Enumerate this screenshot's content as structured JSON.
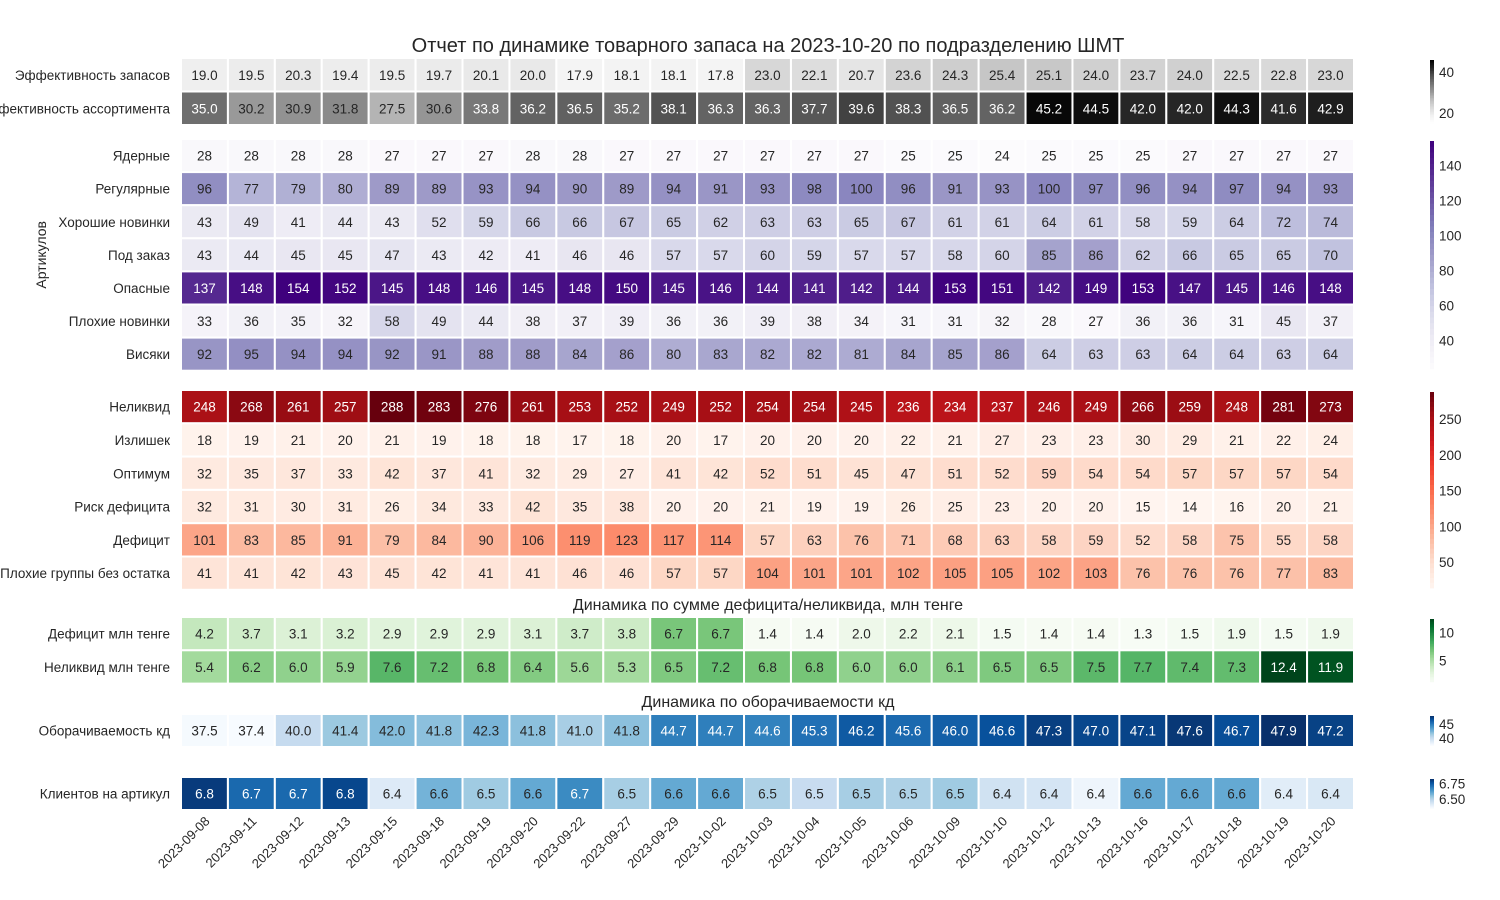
{
  "title": "Отчет по динамике товарного запаса на 2023-10-20 по подразделению ШМТ",
  "chart_data": {
    "type": "heatmap",
    "x": [
      "2023-09-08",
      "2023-09-11",
      "2023-09-12",
      "2023-09-13",
      "2023-09-15",
      "2023-09-18",
      "2023-09-19",
      "2023-09-20",
      "2023-09-22",
      "2023-09-27",
      "2023-09-29",
      "2023-10-02",
      "2023-10-03",
      "2023-10-04",
      "2023-10-05",
      "2023-10-06",
      "2023-10-09",
      "2023-10-10",
      "2023-10-12",
      "2023-10-13",
      "2023-10-16",
      "2023-10-17",
      "2023-10-18",
      "2023-10-19",
      "2023-10-20"
    ],
    "panels": [
      {
        "id": "efficiency",
        "colormap": "greys",
        "decimals": 1,
        "vmin": 15,
        "vmax": 46,
        "colorbar_ticks": [
          "20",
          "40"
        ],
        "colorbar_tick_values": [
          20,
          40
        ],
        "rows": [
          {
            "label": "Эффективность запасов",
            "values": [
              19.0,
              19.5,
              20.3,
              19.4,
              19.5,
              19.7,
              20.1,
              20.0,
              17.9,
              18.1,
              18.1,
              17.8,
              23.0,
              22.1,
              20.7,
              23.6,
              24.3,
              25.4,
              25.1,
              24.0,
              23.7,
              24.0,
              22.5,
              22.8,
              23.0
            ]
          },
          {
            "label": "Эффективность ассортимента",
            "values": [
              35.0,
              30.2,
              30.9,
              31.8,
              27.5,
              30.6,
              33.8,
              36.2,
              36.5,
              35.2,
              38.1,
              36.3,
              36.3,
              37.7,
              39.6,
              38.3,
              36.5,
              36.2,
              45.2,
              44.5,
              42.0,
              42.0,
              44.3,
              41.6,
              42.9
            ]
          }
        ]
      },
      {
        "id": "articles",
        "colormap": "purples",
        "decimals": 0,
        "ylabel": "Артикулов",
        "vmin": 24,
        "vmax": 154,
        "colorbar_ticks": [
          "40",
          "60",
          "80",
          "100",
          "120",
          "140"
        ],
        "colorbar_tick_values": [
          40,
          60,
          80,
          100,
          120,
          140
        ],
        "rows": [
          {
            "label": "Ядерные",
            "values": [
              28,
              28,
              28,
              28,
              27,
              27,
              27,
              28,
              28,
              27,
              27,
              27,
              27,
              27,
              27,
              25,
              25,
              24,
              25,
              25,
              25,
              27,
              27,
              27,
              27
            ]
          },
          {
            "label": "Регулярные",
            "values": [
              96,
              77,
              79,
              80,
              89,
              89,
              93,
              94,
              90,
              89,
              94,
              91,
              93,
              98,
              100,
              96,
              91,
              93,
              100,
              97,
              96,
              94,
              97,
              94,
              93
            ]
          },
          {
            "label": "Хорошие новинки",
            "values": [
              43,
              49,
              41,
              44,
              43,
              52,
              59,
              66,
              66,
              67,
              65,
              62,
              63,
              63,
              65,
              67,
              61,
              61,
              64,
              61,
              58,
              59,
              64,
              72,
              74
            ]
          },
          {
            "label": "Под заказ",
            "values": [
              43,
              44,
              45,
              45,
              47,
              43,
              42,
              41,
              46,
              46,
              57,
              57,
              60,
              59,
              57,
              57,
              58,
              60,
              85,
              86,
              62,
              66,
              65,
              65,
              70
            ]
          },
          {
            "label": "Опасные",
            "values": [
              137,
              148,
              154,
              152,
              145,
              148,
              146,
              145,
              148,
              150,
              145,
              146,
              144,
              141,
              142,
              144,
              153,
              151,
              142,
              149,
              153,
              147,
              145,
              146,
              148
            ]
          },
          {
            "label": "Плохие новинки",
            "values": [
              33,
              36,
              35,
              32,
              58,
              49,
              44,
              38,
              37,
              39,
              36,
              36,
              39,
              38,
              34,
              31,
              31,
              32,
              28,
              27,
              36,
              36,
              31,
              45,
              37
            ]
          },
          {
            "label": "Висяки",
            "values": [
              92,
              95,
              94,
              94,
              92,
              91,
              88,
              88,
              84,
              86,
              80,
              83,
              82,
              82,
              81,
              84,
              85,
              86,
              64,
              63,
              63,
              64,
              64,
              63,
              64
            ]
          }
        ]
      },
      {
        "id": "groups",
        "colormap": "reds",
        "decimals": 0,
        "vmin": 14,
        "vmax": 288,
        "colorbar_ticks": [
          "50",
          "100",
          "150",
          "200",
          "250"
        ],
        "colorbar_tick_values": [
          50,
          100,
          150,
          200,
          250
        ],
        "rows": [
          {
            "label": "Неликвид",
            "values": [
              248,
              268,
              261,
              257,
              288,
              283,
              276,
              261,
              253,
              252,
              249,
              252,
              254,
              254,
              245,
              236,
              234,
              237,
              246,
              249,
              266,
              259,
              248,
              281,
              273
            ]
          },
          {
            "label": "Излишек",
            "values": [
              18,
              19,
              21,
              20,
              21,
              19,
              18,
              18,
              17,
              18,
              20,
              17,
              20,
              20,
              20,
              22,
              21,
              27,
              23,
              23,
              30,
              29,
              21,
              22,
              24
            ]
          },
          {
            "label": "Оптимум",
            "values": [
              32,
              35,
              37,
              33,
              42,
              37,
              41,
              32,
              29,
              27,
              41,
              42,
              52,
              51,
              45,
              47,
              51,
              52,
              59,
              54,
              54,
              57,
              57,
              57,
              54
            ]
          },
          {
            "label": "Риск дефицита",
            "values": [
              32,
              31,
              30,
              31,
              26,
              34,
              33,
              42,
              35,
              38,
              20,
              20,
              21,
              19,
              19,
              26,
              25,
              23,
              20,
              20,
              15,
              14,
              16,
              20,
              21
            ]
          },
          {
            "label": "Дефицит",
            "values": [
              101,
              83,
              85,
              91,
              79,
              84,
              90,
              106,
              119,
              123,
              117,
              114,
              57,
              63,
              76,
              71,
              68,
              63,
              58,
              59,
              52,
              58,
              75,
              55,
              58
            ]
          },
          {
            "label": "Плохие группы без остатка",
            "values": [
              41,
              41,
              42,
              43,
              45,
              42,
              41,
              41,
              46,
              46,
              57,
              57,
              104,
              101,
              101,
              102,
              105,
              105,
              102,
              103,
              76,
              76,
              76,
              77,
              83
            ]
          }
        ]
      },
      {
        "id": "money",
        "title": "Динамика по сумме дефицита/неликвида, млн тенге",
        "colormap": "greens",
        "decimals": 1,
        "vmin": 1.3,
        "vmax": 12.4,
        "colorbar_ticks": [
          "5",
          "10"
        ],
        "colorbar_tick_values": [
          5,
          10
        ],
        "rows": [
          {
            "label": "Дефицит млн тенге",
            "values": [
              4.2,
              3.7,
              3.1,
              3.2,
              2.9,
              2.9,
              2.9,
              3.1,
              3.7,
              3.8,
              6.7,
              6.7,
              1.4,
              1.4,
              2.0,
              2.2,
              2.1,
              1.5,
              1.4,
              1.4,
              1.3,
              1.5,
              1.9,
              1.5,
              1.9
            ]
          },
          {
            "label": "Неликвид млн тенге",
            "values": [
              5.4,
              6.2,
              6.0,
              5.9,
              7.6,
              7.2,
              6.8,
              6.4,
              5.6,
              5.3,
              6.5,
              7.2,
              6.8,
              6.8,
              6.0,
              6.0,
              6.1,
              6.5,
              6.5,
              7.5,
              7.7,
              7.4,
              7.3,
              12.4,
              11.9
            ]
          }
        ]
      },
      {
        "id": "turnover",
        "title": "Динамика по оборачиваемости кд",
        "colormap": "blues",
        "decimals": 1,
        "vmin": 37.4,
        "vmax": 47.9,
        "colorbar_ticks": [
          "40",
          "45"
        ],
        "colorbar_tick_values": [
          40,
          45
        ],
        "rows": [
          {
            "label": "Оборачиваемость кд",
            "values": [
              37.5,
              37.4,
              40.0,
              41.4,
              42.0,
              41.8,
              42.3,
              41.8,
              41.0,
              41.8,
              44.7,
              44.7,
              44.6,
              45.3,
              46.2,
              45.6,
              46.0,
              46.6,
              47.3,
              47.0,
              47.1,
              47.6,
              46.7,
              47.9,
              47.2
            ]
          }
        ]
      },
      {
        "id": "clients",
        "colormap": "blues",
        "decimals": 1,
        "vmin": 6.36,
        "vmax": 6.82,
        "color_values": [
          6.8,
          6.72,
          6.72,
          6.78,
          6.42,
          6.58,
          6.53,
          6.6,
          6.66,
          6.52,
          6.6,
          6.6,
          6.51,
          6.47,
          6.52,
          6.51,
          6.53,
          6.45,
          6.44,
          6.38,
          6.6,
          6.6,
          6.6,
          6.41,
          6.43
        ],
        "colorbar_ticks": [
          "6.50",
          "6.75"
        ],
        "colorbar_tick_values": [
          6.5,
          6.75
        ],
        "rows": [
          {
            "label": "Клиентов на артикул",
            "values": [
              6.8,
              6.7,
              6.7,
              6.8,
              6.4,
              6.6,
              6.5,
              6.6,
              6.7,
              6.5,
              6.6,
              6.6,
              6.5,
              6.5,
              6.5,
              6.5,
              6.5,
              6.4,
              6.4,
              6.4,
              6.6,
              6.6,
              6.6,
              6.4,
              6.4
            ]
          }
        ]
      }
    ]
  }
}
